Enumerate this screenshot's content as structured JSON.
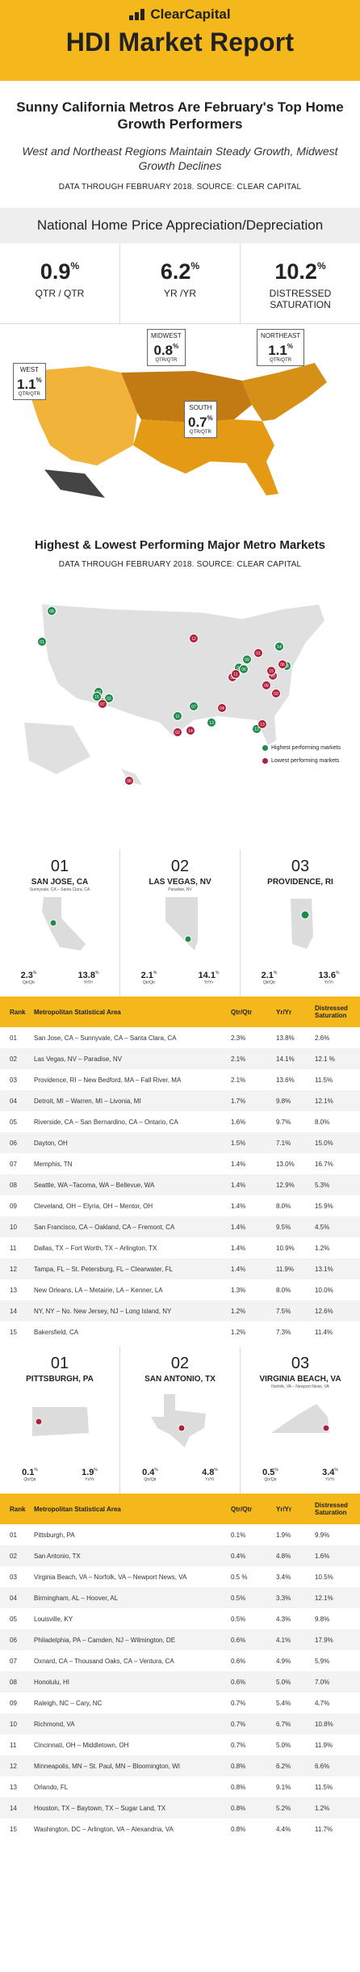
{
  "header": {
    "brand": "ClearCapital",
    "title": "HDI Market Report"
  },
  "intro": {
    "headline": "Sunny California Metros Are February's Top Home Growth Performers",
    "subhead": "West and Northeast Regions Maintain Steady Growth, Midwest Growth Declines",
    "source": "DATA THROUGH FEBRUARY 2018. SOURCE: CLEAR CAPITAL"
  },
  "national": {
    "heading": "National Home Price Appreciation/Depreciation",
    "stats": [
      {
        "value": "0.9",
        "unit": "%",
        "label": "QTR / QTR"
      },
      {
        "value": "6.2",
        "unit": "%",
        "label": "YR /YR"
      },
      {
        "value": "10.2",
        "unit": "%",
        "label": "DISTRESSED SATURATION"
      }
    ],
    "regions": [
      {
        "name": "WEST",
        "value": "1.1",
        "unit": "%",
        "label": "QTR/QTR"
      },
      {
        "name": "MIDWEST",
        "value": "0.8",
        "unit": "%",
        "label": "QTR/QTR"
      },
      {
        "name": "NORTHEAST",
        "value": "1.1",
        "unit": "%",
        "label": "QTR/QTR"
      },
      {
        "name": "SOUTH",
        "value": "0.7",
        "unit": "%",
        "label": "QTR/QTR"
      }
    ]
  },
  "metros": {
    "heading": "Highest & Lowest Performing Major Metro Markets",
    "source": "DATA THROUGH FEBRUARY 2018. SOURCE: CLEAR CAPITAL",
    "legend": {
      "high": "Highest performing markets",
      "low": "Lowest performing markets"
    },
    "colors": {
      "high": "#1e8a4c",
      "low": "#b0203a",
      "accent": "#f4b81c"
    },
    "high_markers": [
      "01",
      "02",
      "03",
      "04",
      "05",
      "06",
      "07",
      "08",
      "09",
      "10",
      "11",
      "12",
      "13",
      "14",
      "15"
    ],
    "low_markers": [
      "01",
      "02",
      "03",
      "04",
      "05",
      "06",
      "07",
      "08",
      "09",
      "10",
      "11",
      "12",
      "13",
      "14",
      "15"
    ]
  },
  "top3": [
    {
      "rank": "01",
      "city": "SAN JOSE, CA",
      "sub": "Sunnyvale, CA – Santa Clara, CA",
      "qtr": "2.3",
      "yr": "13.8"
    },
    {
      "rank": "02",
      "city": "LAS VEGAS, NV",
      "sub": "Paradise, NV",
      "qtr": "2.1",
      "yr": "14.1"
    },
    {
      "rank": "03",
      "city": "PROVIDENCE, RI",
      "sub": "",
      "qtr": "2.1",
      "yr": "13.6"
    }
  ],
  "bottom3": [
    {
      "rank": "01",
      "city": "PITTSBURGH, PA",
      "sub": "",
      "qtr": "0.1",
      "yr": "1.9"
    },
    {
      "rank": "02",
      "city": "SAN ANTONIO, TX",
      "sub": "",
      "qtr": "0.4",
      "yr": "4.8"
    },
    {
      "rank": "03",
      "city": "VIRGINIA BEACH, VA",
      "sub": "Norfolk, VA – Newport News, VA",
      "qtr": "0.5",
      "yr": "3.4"
    }
  ],
  "labels": {
    "pct": "%",
    "qtr": "Qtr/Qtr",
    "yr": "Yr/Yr"
  },
  "table_headers": {
    "top": [
      "Rank",
      "Metropolitan Statistical Area",
      "Qtr/Qtr",
      "Yr/Yr",
      "Distressed Saturation"
    ],
    "bottom": [
      "Rank",
      "Metropolitan Statistical Area",
      "Qtr/Qtr",
      "Yr/Yr",
      "Distressed Saturation"
    ]
  },
  "chart_data": [
    {
      "type": "table",
      "title": "Highest Performing Major Metro Markets",
      "columns": [
        "Rank",
        "Metropolitan Statistical Area",
        "Qtr/Qtr",
        "Yr/Yr",
        "Distressed Saturation"
      ],
      "rows": [
        [
          "01",
          "San Jose, CA – Sunnyvale, CA – Santa Clara, CA",
          "2.3%",
          "13.8%",
          "2.6%"
        ],
        [
          "02",
          "Las Vegas, NV – Paradise, NV",
          "2.1%",
          "14.1%",
          "12.1 %"
        ],
        [
          "03",
          "Providence, RI – New Bedford, MA – Fall River, MA",
          "2.1%",
          "13.6%",
          "11.5%"
        ],
        [
          "04",
          "Detroit, MI – Warren, MI – Livonia, MI",
          "1.7%",
          "9.8%",
          "12.1%"
        ],
        [
          "05",
          "Riverside, CA – San Bernardino, CA – Ontario, CA",
          "1.6%",
          "9.7%",
          "8.0%"
        ],
        [
          "06",
          "Dayton, OH",
          "1.5%",
          "7.1%",
          "15.0%"
        ],
        [
          "07",
          "Memphis, TN",
          "1.4%",
          "13.0%",
          "16.7%"
        ],
        [
          "08",
          "Seattle, WA –Tacoma, WA – Bellevue, WA",
          "1.4%",
          "12.9%",
          "5.3%"
        ],
        [
          "09",
          "Cleveland, OH – Elyria, OH – Mentor, OH",
          "1.4%",
          "8.0%",
          "15.9%"
        ],
        [
          "10",
          "San Francisco, CA – Oakland, CA – Fremont, CA",
          "1.4%",
          "9.5%",
          "4.5%"
        ],
        [
          "11",
          "Dallas, TX – Fort Worth, TX – Arlington, TX",
          "1.4%",
          "10.9%",
          "1.2%"
        ],
        [
          "12",
          "Tampa, FL – St. Petersburg, FL – Clearwater, FL",
          "1.4%",
          "11.9%",
          "13.1%"
        ],
        [
          "13",
          "New Orleans, LA – Metairie, LA – Kenner, LA",
          "1.3%",
          "8.0%",
          "10.0%"
        ],
        [
          "14",
          "NY, NY – No. New Jersey, NJ – Long Island, NY",
          "1.2%",
          "7.5%",
          "12.6%"
        ],
        [
          "15",
          "Bakersfield, CA",
          "1.2%",
          "7.3%",
          "11.4%"
        ]
      ]
    },
    {
      "type": "table",
      "title": "Lowest Performing Major Metro Markets",
      "columns": [
        "Rank",
        "Metropolitan Statistical Area",
        "Qtr/Qtr",
        "Yr/Yr",
        "Distressed Saturation"
      ],
      "rows": [
        [
          "01",
          "Pittsburgh, PA",
          "0.1%",
          "1.9%",
          "9.9%"
        ],
        [
          "02",
          "San Antonio, TX",
          "0.4%",
          "4.8%",
          "1.6%"
        ],
        [
          "03",
          "Virginia Beach, VA – Norfolk, VA – Newport News, VA",
          "0.5 %",
          "3.4%",
          "10.5%"
        ],
        [
          "04",
          "Birmingham, AL – Hoover, AL",
          "0.5%",
          "3.3%",
          "12.1%"
        ],
        [
          "05",
          "Louisville, KY",
          "0.5%",
          "4.3%",
          "9.8%"
        ],
        [
          "06",
          "Philadelphia, PA – Camden, NJ – Wilmington, DE",
          "0.6%",
          "4.1%",
          "17.9%"
        ],
        [
          "07",
          "Oxnard, CA – Thousand Oaks, CA – Ventura, CA",
          "0.6%",
          "4.9%",
          "5.9%"
        ],
        [
          "08",
          "Honolulu, HI",
          "0.6%",
          "5.0%",
          "7.0%"
        ],
        [
          "09",
          "Raleigh, NC – Cary, NC",
          "0.7%",
          "5.4%",
          "4.7%"
        ],
        [
          "10",
          "Richmond, VA",
          "0.7%",
          "6.7%",
          "10.8%"
        ],
        [
          "11",
          "Cincinnati, OH – Middletown, OH",
          "0.7%",
          "5.0%",
          "11.9%"
        ],
        [
          "12",
          "Minneapolis, MN – St. Paul, MN – Bloomington, WI",
          "0.8%",
          "6.2%",
          "6.6%"
        ],
        [
          "13",
          "Orlando, FL",
          "0.8%",
          "9.1%",
          "11.5%"
        ],
        [
          "14",
          "Houston, TX – Baytown, TX – Sugar Land, TX",
          "0.8%",
          "5.2%",
          "1.2%"
        ],
        [
          "15",
          "Washington, DC – Arlington, VA – Alexandria, VA",
          "0.8%",
          "4.4%",
          "11.7%"
        ]
      ]
    }
  ]
}
